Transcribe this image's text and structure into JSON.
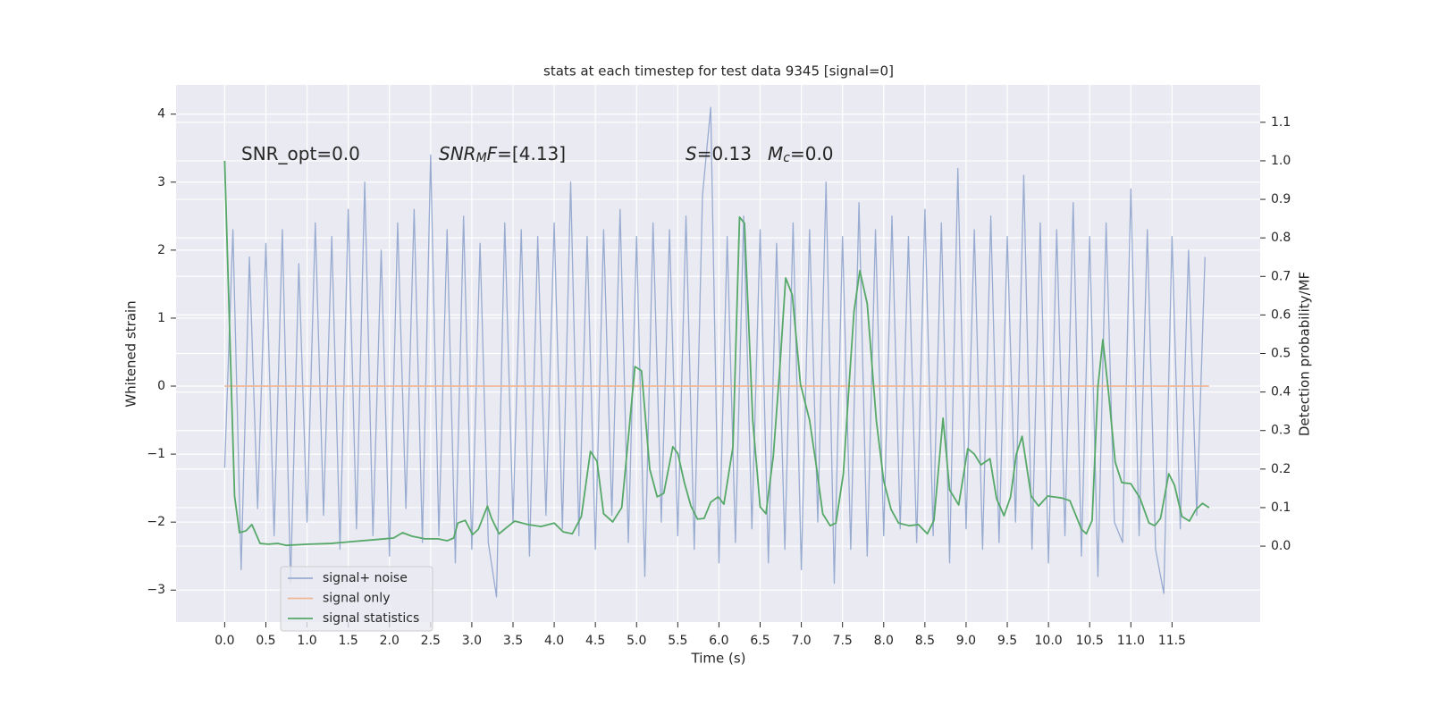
{
  "chart_data": {
    "type": "line",
    "title": "stats at each timestep for test data 9345 [signal=0]",
    "xlabel": "Time (s)",
    "ylabel": "Whitened strain",
    "y2label": "Detection probability/MF",
    "xlim": [
      -0.59,
      12.57
    ],
    "ylim": [
      -3.47,
      4.43
    ],
    "y2lim": [
      -0.197,
      1.197
    ],
    "xticks": [
      {
        "value": 0,
        "label": "0.0"
      },
      0.5,
      {
        "value": 1,
        "label": "1.0"
      },
      1.5,
      {
        "value": 2,
        "label": "2.0"
      },
      2.5,
      {
        "value": 3,
        "label": "3.0"
      },
      3.5,
      {
        "value": 4,
        "label": "4.0"
      },
      4.5,
      {
        "value": 5,
        "label": "5.0"
      },
      5.5,
      {
        "value": 6,
        "label": "6.0"
      },
      6.5,
      {
        "value": 7,
        "label": "7.0"
      },
      7.5,
      {
        "value": 8,
        "label": "8.0"
      },
      8.5,
      {
        "value": 9,
        "label": "9.0"
      },
      9.5,
      {
        "value": 10,
        "label": "10.0"
      },
      10.5,
      {
        "value": 11,
        "label": "11.0"
      },
      11.5
    ],
    "yticks": [
      {
        "value": -3,
        "label": "−3"
      },
      {
        "value": -2,
        "label": "−2"
      },
      {
        "value": -1,
        "label": "−1"
      },
      0,
      1,
      2,
      3,
      4
    ],
    "y2ticks": [
      {
        "value": 0,
        "label": "0.0"
      },
      0.1,
      0.2,
      0.3,
      0.4,
      0.5,
      0.6,
      0.7,
      0.8,
      0.9,
      {
        "value": 1,
        "label": "1.0"
      },
      1.1
    ],
    "grid": true,
    "legend": "lower left",
    "annotations": [
      {
        "parts": [
          {
            "text": "SNR_opt=0.0"
          }
        ]
      },
      {
        "parts": [
          {
            "text": "SNR",
            "italic": true
          },
          {
            "text": "M",
            "italic": true,
            "sub": true
          },
          {
            "text": "F",
            "italic": true
          },
          {
            "text": "=[4.13]"
          }
        ]
      },
      {
        "parts": [
          {
            "text": "S",
            "italic": true
          },
          {
            "text": "=0.13"
          }
        ]
      },
      {
        "parts": [
          {
            "text": "M",
            "italic": true
          },
          {
            "text": "c",
            "italic": true,
            "sub": true
          },
          {
            "text": "=0.0"
          }
        ]
      }
    ],
    "series": [
      {
        "name": "signal+ noise",
        "color": "#98abd0",
        "x": [
          0,
          0.1,
          0.2,
          0.3,
          0.4,
          0.5,
          0.6,
          0.7,
          0.8,
          0.9,
          1,
          1.1,
          1.2,
          1.3,
          1.4,
          1.5,
          1.6,
          1.7,
          1.8,
          1.9,
          2,
          2.1,
          2.2,
          2.3,
          2.4,
          2.5,
          2.6,
          2.7,
          2.8,
          2.9,
          3,
          3.1,
          3.2,
          3.3,
          3.4,
          3.5,
          3.6,
          3.7,
          3.8,
          3.9,
          4,
          4.1,
          4.2,
          4.3,
          4.4,
          4.5,
          4.6,
          4.7,
          4.8,
          4.9,
          5,
          5.1,
          5.2,
          5.3,
          5.4,
          5.5,
          5.6,
          5.7,
          5.8,
          5.9,
          6,
          6.1,
          6.2,
          6.3,
          6.4,
          6.5,
          6.6,
          6.7,
          6.8,
          6.9,
          7,
          7.1,
          7.2,
          7.3,
          7.4,
          7.5,
          7.6,
          7.7,
          7.8,
          7.9,
          8,
          8.1,
          8.2,
          8.3,
          8.4,
          8.5,
          8.6,
          8.7,
          8.8,
          8.9,
          9,
          9.1,
          9.2,
          9.3,
          9.4,
          9.5,
          9.6,
          9.7,
          9.8,
          9.9,
          10,
          10.1,
          10.2,
          10.3,
          10.4,
          10.5,
          10.6,
          10.7,
          10.8,
          10.9,
          11,
          11.1,
          11.2,
          11.3,
          11.4,
          11.5,
          11.6,
          11.7,
          11.8,
          11.9
        ],
        "values": [
          -1.2,
          2.3,
          -2.7,
          1.9,
          -1.8,
          2.1,
          -2.2,
          2.3,
          -2.9,
          1.8,
          -2.0,
          2.4,
          -1.9,
          2.2,
          -2.4,
          2.6,
          -2.1,
          3.0,
          -2.2,
          2.0,
          -2.5,
          2.4,
          -1.8,
          2.6,
          -2.3,
          3.4,
          -2.2,
          2.3,
          -2.6,
          2.5,
          -2.4,
          2.1,
          -2.3,
          -3.1,
          2.4,
          -2.0,
          2.3,
          -2.5,
          2.2,
          -1.9,
          2.4,
          -2.1,
          3.0,
          -2.2,
          2.2,
          -2.4,
          2.3,
          -1.9,
          2.6,
          -2.3,
          2.2,
          -2.8,
          2.4,
          -2.0,
          2.3,
          -2.2,
          2.5,
          -2.4,
          2.8,
          4.1,
          -2.6,
          2.2,
          -2.3,
          2.5,
          -2.1,
          2.3,
          -2.6,
          2.1,
          -2.4,
          2.4,
          -2.7,
          2.3,
          -2.0,
          3.0,
          -2.9,
          2.2,
          -2.4,
          2.7,
          -2.5,
          2.3,
          -2.2,
          2.5,
          -2.1,
          2.2,
          -2.3,
          2.6,
          -2.2,
          2.4,
          -2.6,
          3.2,
          -2.1,
          2.3,
          -2.4,
          2.5,
          -2.3,
          2.2,
          -2.0,
          3.1,
          -2.4,
          2.4,
          -2.6,
          2.3,
          -2.2,
          2.7,
          -2.5,
          2.2,
          -2.8,
          2.4,
          -2.0,
          -2.3,
          2.9,
          -2.2,
          2.3,
          -2.4,
          -3.05,
          2.2,
          -2.1,
          2.0,
          -1.9,
          1.9
        ]
      },
      {
        "name": "signal only",
        "color": "#eeb898",
        "x": [
          0,
          11.95
        ],
        "values": [
          0,
          0
        ]
      },
      {
        "name": "signal statistics",
        "color": "#55a868",
        "axis": "y2",
        "x": [
          0,
          0.12,
          0.18,
          0.26,
          0.33,
          0.43,
          0.53,
          0.64,
          0.75,
          1.02,
          1.29,
          1.56,
          1.78,
          2.05,
          2.16,
          2.27,
          2.43,
          2.59,
          2.7,
          2.78,
          2.83,
          2.92,
          3.01,
          3.08,
          3.19,
          3.24,
          3.33,
          3.41,
          3.52,
          3.68,
          3.84,
          4,
          4.11,
          4.22,
          4.33,
          4.44,
          4.52,
          4.6,
          4.71,
          4.82,
          4.89,
          4.98,
          5.06,
          5.16,
          5.25,
          5.33,
          5.44,
          5.5,
          5.58,
          5.66,
          5.74,
          5.82,
          5.9,
          5.99,
          6.06,
          6.17,
          6.25,
          6.31,
          6.41,
          6.5,
          6.57,
          6.66,
          6.74,
          6.81,
          6.89,
          6.99,
          7.1,
          7.18,
          7.26,
          7.35,
          7.42,
          7.51,
          7.58,
          7.64,
          7.71,
          7.8,
          7.91,
          8,
          8.09,
          8.18,
          8.31,
          8.42,
          8.53,
          8.61,
          8.72,
          8.8,
          8.91,
          9.02,
          9.1,
          9.18,
          9.29,
          9.37,
          9.46,
          9.54,
          9.61,
          9.68,
          9.79,
          9.88,
          9.99,
          10.16,
          10.26,
          10.4,
          10.46,
          10.53,
          10.6,
          10.66,
          10.73,
          10.81,
          10.89,
          11,
          11.11,
          11.22,
          11.29,
          11.36,
          11.46,
          11.53,
          11.62,
          11.71,
          11.79,
          11.87,
          11.95
        ],
        "values": [
          1.0,
          0.13,
          0.035,
          0.04,
          0.056,
          0.007,
          0.005,
          0.007,
          0.002,
          0.005,
          0.007,
          0.012,
          0.016,
          0.021,
          0.035,
          0.026,
          0.019,
          0.019,
          0.014,
          0.021,
          0.06,
          0.067,
          0.03,
          0.044,
          0.104,
          0.072,
          0.032,
          0.046,
          0.065,
          0.056,
          0.051,
          0.06,
          0.037,
          0.032,
          0.077,
          0.246,
          0.22,
          0.084,
          0.063,
          0.1,
          0.258,
          0.466,
          0.455,
          0.2,
          0.128,
          0.137,
          0.258,
          0.241,
          0.165,
          0.104,
          0.07,
          0.072,
          0.114,
          0.128,
          0.109,
          0.258,
          0.854,
          0.838,
          0.327,
          0.102,
          0.084,
          0.234,
          0.466,
          0.696,
          0.652,
          0.42,
          0.327,
          0.211,
          0.084,
          0.053,
          0.06,
          0.188,
          0.42,
          0.61,
          0.715,
          0.629,
          0.327,
          0.169,
          0.095,
          0.06,
          0.053,
          0.056,
          0.032,
          0.067,
          0.332,
          0.146,
          0.107,
          0.253,
          0.239,
          0.211,
          0.227,
          0.123,
          0.079,
          0.128,
          0.239,
          0.285,
          0.13,
          0.104,
          0.13,
          0.125,
          0.118,
          0.044,
          0.032,
          0.067,
          0.413,
          0.536,
          0.397,
          0.218,
          0.165,
          0.162,
          0.125,
          0.06,
          0.053,
          0.072,
          0.188,
          0.158,
          0.077,
          0.065,
          0.095,
          0.111,
          0.1
        ]
      }
    ]
  }
}
